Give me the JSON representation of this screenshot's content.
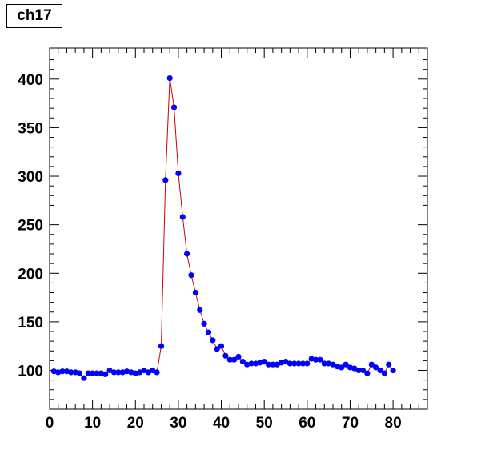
{
  "chart_data": {
    "type": "scatter",
    "title": "ch17",
    "xlabel": "",
    "ylabel": "",
    "xlim": [
      0,
      88
    ],
    "ylim": [
      60,
      432
    ],
    "x_ticks": [
      0,
      10,
      20,
      30,
      40,
      50,
      60,
      70,
      80
    ],
    "y_ticks": [
      100,
      150,
      200,
      250,
      300,
      350,
      400
    ],
    "grid": false,
    "colors": {
      "points": "#0000ff",
      "fit_line": "#cc0000",
      "frame": "#000000"
    },
    "series": [
      {
        "x": [
          1,
          2,
          3,
          4,
          5,
          6,
          7,
          8,
          9,
          10,
          11,
          12,
          13,
          14,
          15,
          16,
          17,
          18,
          19,
          20,
          21,
          22,
          23,
          24,
          25,
          26,
          27,
          28,
          29,
          30,
          31,
          32,
          33,
          34,
          35,
          36,
          37,
          38,
          39,
          40,
          41,
          42,
          43,
          44,
          45,
          46,
          47,
          48,
          49,
          50,
          51,
          52,
          53,
          54,
          55,
          56,
          57,
          58,
          59,
          60,
          61,
          62,
          63,
          64,
          65,
          66,
          67,
          68,
          69,
          70,
          71,
          72,
          73,
          74,
          75,
          76,
          77,
          78,
          79,
          80
        ],
        "y": [
          99,
          98,
          99,
          99,
          98,
          98,
          97,
          92,
          97,
          97,
          97,
          97,
          96,
          100,
          98,
          98,
          98,
          99,
          98,
          97,
          98,
          100,
          98,
          100,
          98,
          125,
          296,
          401,
          371,
          303,
          258,
          220,
          198,
          180,
          162,
          148,
          139,
          131,
          122,
          125,
          115,
          111,
          111,
          114,
          109,
          106,
          107,
          107,
          108,
          109,
          106,
          106,
          106,
          108,
          109,
          107,
          107,
          107,
          107,
          107,
          112,
          111,
          111,
          107,
          107,
          106,
          104,
          103,
          106,
          103,
          102,
          100,
          100,
          97,
          106,
          103,
          100,
          97,
          106,
          100
        ]
      }
    ]
  }
}
